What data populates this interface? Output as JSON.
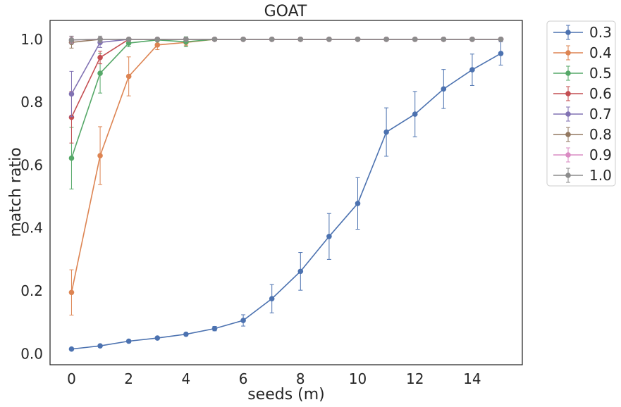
{
  "chart_data": {
    "type": "line",
    "title": "GOAT",
    "xlabel": "seeds (m)",
    "ylabel": "match ratio",
    "xlim": [
      -0.75,
      15.75
    ],
    "ylim": [
      -0.035,
      1.06
    ],
    "xticks": [
      0,
      2,
      4,
      6,
      8,
      10,
      12,
      14
    ],
    "yticks": [
      0.0,
      0.2,
      0.4,
      0.6,
      0.8,
      1.0
    ],
    "xtick_labels": [
      "0",
      "2",
      "4",
      "6",
      "8",
      "10",
      "12",
      "14"
    ],
    "ytick_labels": [
      "0.0",
      "0.2",
      "0.4",
      "0.6",
      "0.8",
      "1.0"
    ],
    "grid": false,
    "legend_position": "outside-right-top",
    "x": [
      0,
      1,
      2,
      3,
      4,
      5,
      6,
      7,
      8,
      9,
      10,
      11,
      12,
      13,
      14,
      15
    ],
    "series": [
      {
        "name": "0.3",
        "color": "#4c72b0",
        "values": [
          0.015,
          0.025,
          0.04,
          0.05,
          0.062,
          0.08,
          0.106,
          0.175,
          0.262,
          0.373,
          0.478,
          0.705,
          0.762,
          0.842,
          0.903,
          0.955
        ],
        "errors": [
          0.003,
          0.004,
          0.004,
          0.004,
          0.005,
          0.007,
          0.018,
          0.045,
          0.06,
          0.073,
          0.082,
          0.077,
          0.072,
          0.062,
          0.05,
          0.037
        ]
      },
      {
        "name": "0.4",
        "color": "#dd8452",
        "values": [
          0.195,
          0.63,
          0.882,
          0.982,
          0.99,
          1.0,
          1.0,
          1.0,
          1.0,
          1.0,
          1.0,
          1.0,
          1.0,
          1.0,
          1.0,
          1.0
        ],
        "errors": [
          0.072,
          0.092,
          0.062,
          0.015,
          0.01,
          0.0,
          0.0,
          0.0,
          0.0,
          0.0,
          0.0,
          0.0,
          0.0,
          0.0,
          0.0,
          0.0
        ]
      },
      {
        "name": "0.5",
        "color": "#55a868",
        "values": [
          0.622,
          0.892,
          0.988,
          0.998,
          0.992,
          1.0,
          1.0,
          1.0,
          1.0,
          1.0,
          1.0,
          1.0,
          1.0,
          1.0,
          1.0,
          1.0
        ],
        "errors": [
          0.098,
          0.063,
          0.012,
          0.003,
          0.016,
          0.0,
          0.0,
          0.0,
          0.0,
          0.0,
          0.0,
          0.0,
          0.0,
          0.0,
          0.0,
          0.0
        ]
      },
      {
        "name": "0.6",
        "color": "#c44e52",
        "values": [
          0.752,
          0.942,
          1.0,
          1.0,
          1.0,
          1.0,
          1.0,
          1.0,
          1.0,
          1.0,
          1.0,
          1.0,
          1.0,
          1.0,
          1.0,
          1.0
        ],
        "errors": [
          0.082,
          0.02,
          0.003,
          0.0,
          0.0,
          0.0,
          0.0,
          0.0,
          0.0,
          0.0,
          0.0,
          0.0,
          0.0,
          0.0,
          0.0,
          0.0
        ]
      },
      {
        "name": "0.7",
        "color": "#8172b3",
        "values": [
          0.826,
          0.99,
          1.0,
          1.0,
          1.0,
          1.0,
          1.0,
          1.0,
          1.0,
          1.0,
          1.0,
          1.0,
          1.0,
          1.0,
          1.0,
          1.0
        ],
        "errors": [
          0.072,
          0.016,
          0.0,
          0.0,
          0.0,
          0.0,
          0.0,
          0.0,
          0.0,
          0.0,
          0.0,
          0.0,
          0.0,
          0.0,
          0.0,
          0.0
        ]
      },
      {
        "name": "0.8",
        "color": "#937860",
        "values": [
          0.99,
          1.0,
          1.0,
          1.0,
          1.0,
          1.0,
          1.0,
          1.0,
          1.0,
          1.0,
          1.0,
          1.0,
          1.0,
          1.0,
          1.0,
          1.0
        ],
        "errors": [
          0.018,
          0.004,
          0.0,
          0.0,
          0.0,
          0.0,
          0.0,
          0.0,
          0.0,
          0.0,
          0.0,
          0.0,
          0.0,
          0.0,
          0.0,
          0.0
        ]
      },
      {
        "name": "0.9",
        "color": "#da8bc3",
        "values": [
          0.998,
          1.0,
          1.0,
          1.0,
          1.0,
          1.0,
          1.0,
          1.0,
          1.0,
          1.0,
          1.0,
          1.0,
          1.0,
          1.0,
          1.0,
          1.0
        ],
        "errors": [
          0.01,
          0.003,
          0.0,
          0.0,
          0.0,
          0.0,
          0.0,
          0.0,
          0.0,
          0.0,
          0.0,
          0.0,
          0.0,
          0.0,
          0.0,
          0.0
        ]
      },
      {
        "name": "1.0",
        "color": "#8c8c8c",
        "values": [
          0.998,
          1.0,
          1.0,
          1.0,
          1.0,
          1.0,
          1.0,
          1.0,
          1.0,
          1.0,
          1.0,
          1.0,
          1.0,
          1.0,
          1.0,
          1.0
        ],
        "errors": [
          0.012,
          0.01,
          0.004,
          0.003,
          0.006,
          0.0,
          0.0,
          0.0,
          0.0,
          0.0,
          0.0,
          0.0,
          0.0,
          0.0,
          0.0,
          0.0
        ]
      }
    ]
  }
}
